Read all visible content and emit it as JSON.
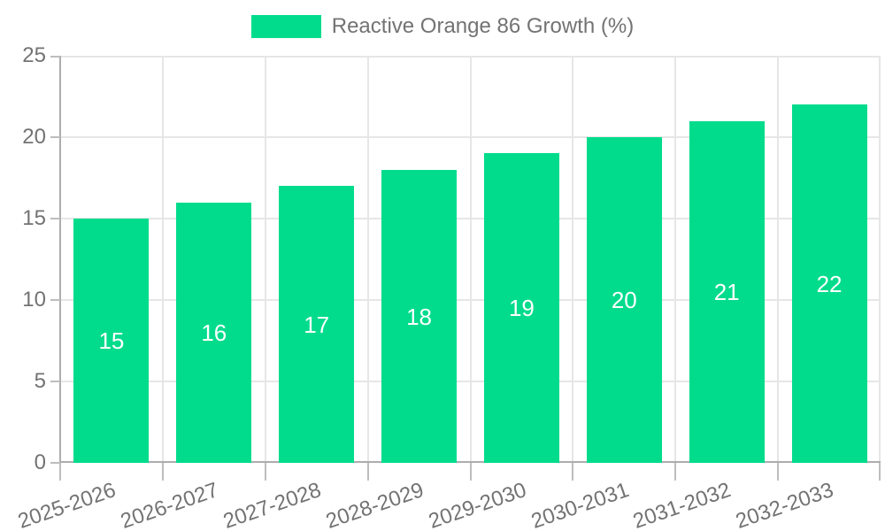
{
  "legend": {
    "label": "Reactive Orange 86 Growth (%)"
  },
  "chart_data": {
    "type": "bar",
    "title": "",
    "xlabel": "",
    "ylabel": "",
    "categories": [
      "2025-2026",
      "2026-2027",
      "2027-2028",
      "2028-2029",
      "2029-2030",
      "2030-2031",
      "2031-2032",
      "2032-2033"
    ],
    "values": [
      15,
      16,
      17,
      18,
      19,
      20,
      21,
      22
    ],
    "series_name": "Reactive Orange 86 Growth (%)",
    "value_labels": [
      "15",
      "16",
      "17",
      "18",
      "19",
      "20",
      "21",
      "22"
    ],
    "ylim": [
      0,
      25
    ],
    "yticks": [
      0,
      5,
      10,
      15,
      20,
      25
    ],
    "grid": true,
    "legend_position": "top",
    "x_label_rotation_deg": -19,
    "colors": {
      "bar": "#00DC8C",
      "value_label": "#FFFFFF",
      "axis_text": "#737373",
      "axis_line": "#ADADAD",
      "gridline": "#E6E6E6",
      "tick": "#BDBDBD",
      "background": "#FFFFFF"
    }
  }
}
